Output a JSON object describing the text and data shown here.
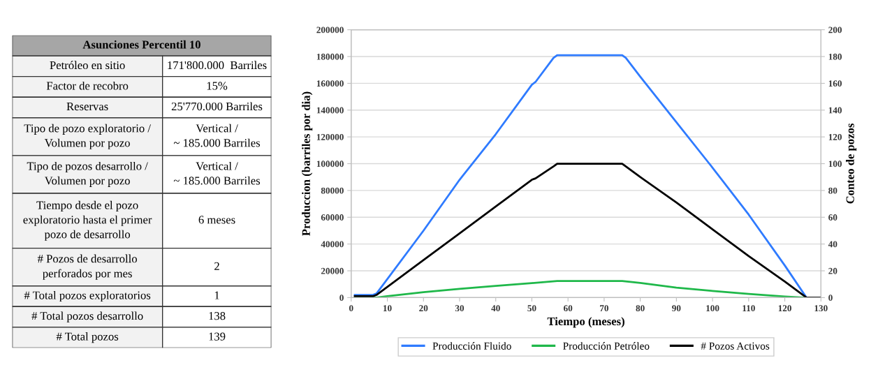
{
  "chart_data": [
    {
      "type": "other",
      "title": "Asunciones Percentil 10",
      "annotations": [
        "Petróleo en sitio",
        "171'800.000  Barriles",
        "Factor de recobro",
        "15%",
        "Reservas",
        "25'770.000 Barriles",
        "Tipo de pozo exploratorio /\nVolumen por pozo",
        "Vertical /\n~ 185.000 Barriles",
        "Tipo de pozos desarrollo /\nVolumen por pozo",
        "Vertical /\n~ 185.000 Barriles",
        "Tiempo desde el pozo\nexploratorio hasta el primer\npozo de desarrollo",
        "6 meses",
        "# Pozos de desarrollo\nperforados por mes",
        "2",
        "# Total pozos exploratorios",
        "1",
        "# Total pozos desarrollo",
        "138",
        "# Total pozos",
        "139"
      ]
    },
    {
      "type": "line",
      "xlabel": "Tiempo (meses)",
      "ylabel": "Produccion (barriles por dia)",
      "y2label": "Conteo de pozos",
      "xlim": [
        0,
        130
      ],
      "xticks": [
        0,
        10,
        20,
        30,
        40,
        50,
        60,
        70,
        80,
        90,
        100,
        110,
        120,
        130
      ],
      "ylim": [
        0,
        200000
      ],
      "yticks": [
        0,
        20000,
        40000,
        60000,
        80000,
        100000,
        120000,
        140000,
        160000,
        180000,
        200000
      ],
      "y2lim": [
        0,
        200
      ],
      "y2ticks": [
        0,
        20,
        40,
        60,
        80,
        100,
        120,
        140,
        160,
        180,
        200
      ],
      "grid": "y",
      "legend": "bottom",
      "marker": "none",
      "line_style": "solid",
      "series": [
        {
          "name": "Producción Fluido",
          "color": "#2f7bff",
          "x": [
            1,
            6,
            7,
            20,
            30,
            40,
            50,
            51,
            56,
            57,
            75,
            76,
            80,
            90,
            100,
            110,
            120,
            126
          ],
          "values": [
            2000,
            2000,
            3000,
            50000,
            88000,
            122000,
            159000,
            161000,
            179000,
            181000,
            181000,
            179000,
            165000,
            131000,
            97000,
            62000,
            24000,
            0
          ]
        },
        {
          "name": "Producción Petróleo",
          "color": "#1fb84a",
          "x": [
            1,
            7,
            10,
            20,
            30,
            40,
            50,
            57,
            75,
            80,
            90,
            100,
            110,
            120,
            125
          ],
          "values": [
            0,
            0,
            1000,
            4000,
            6500,
            8800,
            10800,
            12400,
            12400,
            11000,
            7500,
            5000,
            2800,
            800,
            0
          ]
        },
        {
          "name": "# Pozos Activos",
          "color": "#000000",
          "axis": "y2",
          "x": [
            1,
            6,
            7,
            20,
            30,
            40,
            50,
            51,
            56,
            57,
            75,
            80,
            90,
            100,
            110,
            120,
            126,
            130
          ],
          "values": [
            1,
            1,
            2,
            28,
            48,
            68,
            88,
            89,
            98,
            100,
            100,
            90,
            71,
            51,
            31,
            12,
            0,
            0
          ]
        }
      ]
    }
  ]
}
